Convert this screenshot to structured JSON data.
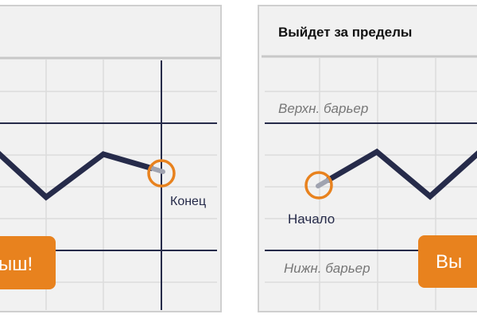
{
  "left_panel": {
    "end_label": "Конец",
    "button_label": "ыш!"
  },
  "right_panel": {
    "title": "Выйдет за пределы",
    "upper_barrier_label": "Верхн. барьер",
    "lower_barrier_label": "Нижн. барьер",
    "start_label": "Начало",
    "button_label": "Вы"
  },
  "colors": {
    "panel_bg": "#f1f1f1",
    "grid": "#dcdcdc",
    "line": "#262b4a",
    "accent": "#e8821e",
    "muted": "#777777"
  }
}
